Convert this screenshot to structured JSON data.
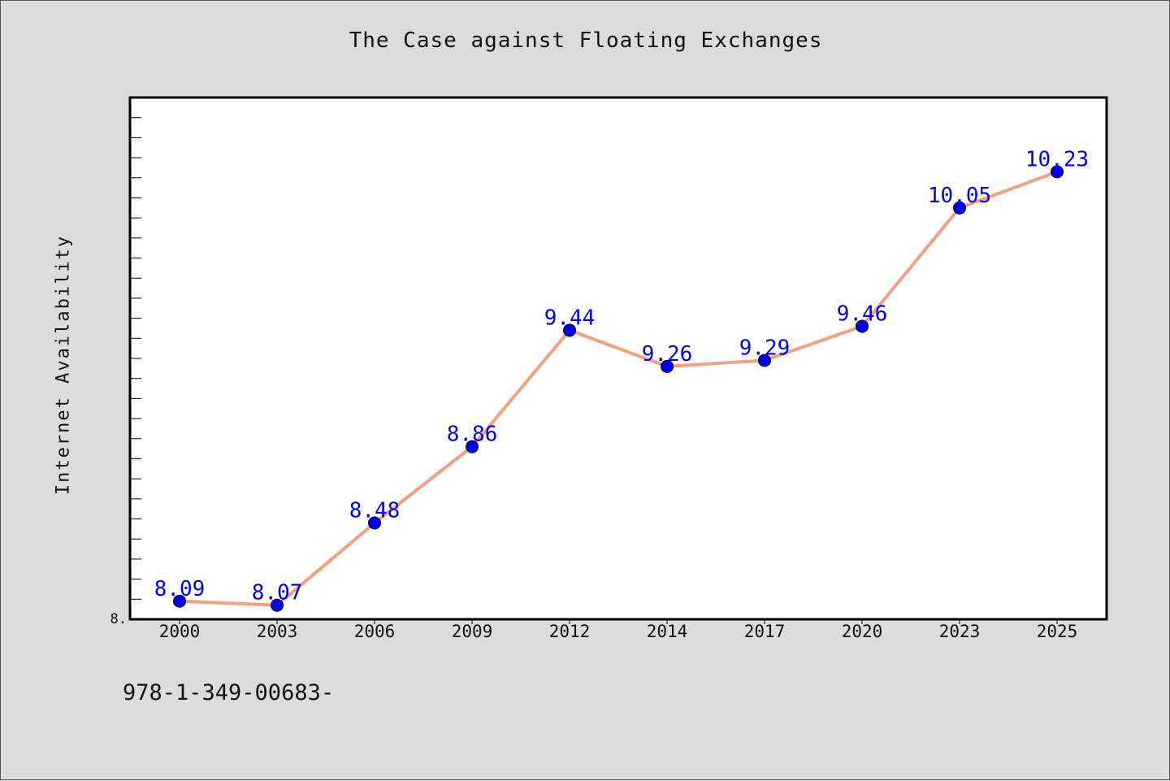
{
  "chart_data": {
    "type": "line",
    "title": "The Case against Floating Exchanges",
    "xlabel": "",
    "ylabel": "Internet Availability",
    "categories": [
      "2000",
      "2003",
      "2006",
      "2009",
      "2012",
      "2014",
      "2017",
      "2020",
      "2023",
      "2025"
    ],
    "values": [
      8.09,
      8.07,
      8.48,
      8.86,
      9.44,
      9.26,
      9.29,
      9.46,
      10.05,
      10.23
    ],
    "data_labels": [
      "8.09",
      "8.07",
      "8.48",
      "8.86",
      "9.44",
      "9.26",
      "9.29",
      "9.46",
      "10.05",
      "10.23"
    ],
    "y_tick_label": "8.",
    "ylim": [
      8.0,
      10.6
    ],
    "grid": false,
    "line_color": "#f4a07f",
    "marker_color": "#0000ee",
    "label_color": "#0000ee"
  },
  "footer": {
    "isbn": "978-1-349-00683-"
  }
}
